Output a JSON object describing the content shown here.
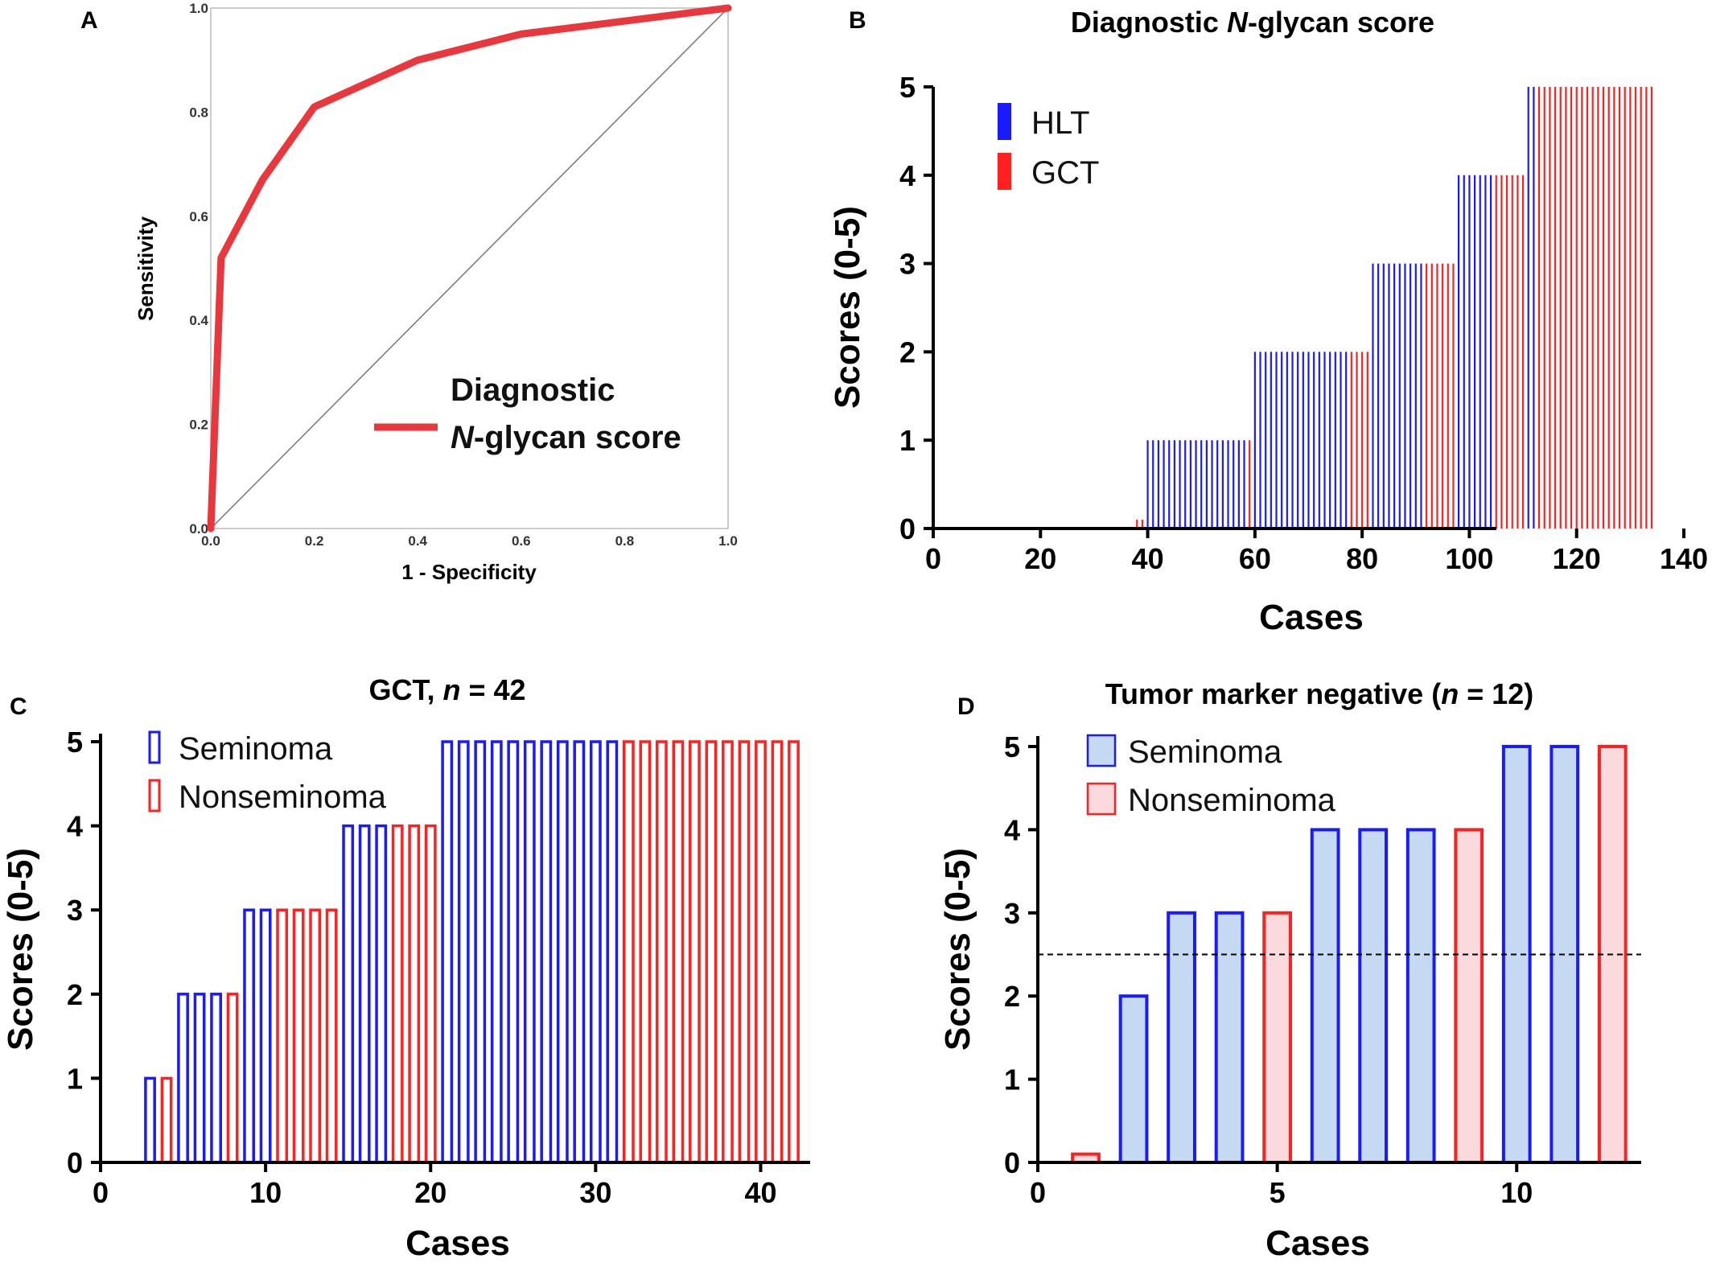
{
  "panels": {
    "a": {
      "label": "A"
    },
    "b": {
      "label": "B"
    },
    "c": {
      "label": "C"
    },
    "d": {
      "label": "D"
    }
  },
  "chart_data": [
    {
      "panel": "A",
      "type": "line",
      "title": "",
      "xlabel": "1 - Specificity",
      "ylabel": "Sensitivity",
      "xlim": [
        0,
        1
      ],
      "ylim": [
        0,
        1
      ],
      "xticks": [
        "0.0",
        "0.2",
        "0.4",
        "0.6",
        "0.8",
        "1.0"
      ],
      "yticks": [
        "0.0",
        "0.2",
        "0.4",
        "0.6",
        "0.8",
        "1.0"
      ],
      "series": [
        {
          "name": "Diagnostic N-glycan score",
          "color": "#e8383d",
          "points": [
            [
              0,
              0
            ],
            [
              0.02,
              0.52
            ],
            [
              0.1,
              0.67
            ],
            [
              0.2,
              0.81
            ],
            [
              0.4,
              0.9
            ],
            [
              0.6,
              0.95
            ],
            [
              1.0,
              1.0
            ]
          ]
        }
      ],
      "reference_line": [
        [
          0,
          0
        ],
        [
          1,
          1
        ]
      ],
      "legend_lines": [
        "Diagnostic",
        "N",
        "-glycan score"
      ]
    },
    {
      "panel": "B",
      "type": "bar",
      "title_parts": [
        "Diagnostic ",
        "N",
        "-glycan score"
      ],
      "xlabel": "Cases",
      "ylabel": "Scores (0-5)",
      "xlim": [
        0,
        140
      ],
      "ylim": [
        0,
        5
      ],
      "xticks": [
        "0",
        "20",
        "40",
        "60",
        "80",
        "100",
        "120",
        "140"
      ],
      "yticks": [
        "0",
        "1",
        "2",
        "3",
        "4",
        "5"
      ],
      "legend": [
        {
          "name": "HLT",
          "color": "#1a1aff"
        },
        {
          "name": "GCT",
          "color": "#ff2020"
        }
      ],
      "runs": [
        {
          "group": "GCT",
          "score": 0.1,
          "count": 2
        },
        {
          "group": "HLT",
          "score": 1,
          "count": 19
        },
        {
          "group": "GCT",
          "score": 1,
          "count": 1
        },
        {
          "group": "HLT",
          "score": 2,
          "count": 18
        },
        {
          "group": "GCT",
          "score": 2,
          "count": 4
        },
        {
          "group": "HLT",
          "score": 3,
          "count": 10
        },
        {
          "group": "GCT",
          "score": 3,
          "count": 6
        },
        {
          "group": "HLT",
          "score": 4,
          "count": 7
        },
        {
          "group": "GCT",
          "score": 4,
          "count": 6
        },
        {
          "group": "HLT",
          "score": 5,
          "count": 2
        },
        {
          "group": "GCT",
          "score": 5,
          "count": 22
        }
      ],
      "first_case": 38
    },
    {
      "panel": "C",
      "type": "bar",
      "title_parts": [
        "GCT, ",
        "n",
        " = 42"
      ],
      "xlabel": "Cases",
      "ylabel": "Scores (0-5)",
      "xlim": [
        0,
        43
      ],
      "ylim": [
        0,
        5
      ],
      "xticks": [
        "0",
        "10",
        "20",
        "30",
        "40"
      ],
      "yticks": [
        "0",
        "1",
        "2",
        "3",
        "4",
        "5"
      ],
      "legend": [
        {
          "name": "Seminoma",
          "color": "#1a1aff"
        },
        {
          "name": "Nonseminoma",
          "color": "#ff2020"
        }
      ],
      "runs": [
        {
          "group": "Seminoma",
          "score": 1,
          "count": 1
        },
        {
          "group": "Nonseminoma",
          "score": 1,
          "count": 1
        },
        {
          "group": "Seminoma",
          "score": 2,
          "count": 3
        },
        {
          "group": "Nonseminoma",
          "score": 2,
          "count": 1
        },
        {
          "group": "Seminoma",
          "score": 3,
          "count": 2
        },
        {
          "group": "Nonseminoma",
          "score": 3,
          "count": 4
        },
        {
          "group": "Seminoma",
          "score": 4,
          "count": 3
        },
        {
          "group": "Nonseminoma",
          "score": 4,
          "count": 3
        },
        {
          "group": "Seminoma",
          "score": 5,
          "count": 11
        },
        {
          "group": "Nonseminoma",
          "score": 5,
          "count": 11
        }
      ],
      "first_case": 3
    },
    {
      "panel": "D",
      "type": "bar",
      "title_parts": [
        "Tumor marker negative (",
        "n",
        " = 12)"
      ],
      "xlabel": "Cases",
      "ylabel": "Scores (0-5)",
      "xlim": [
        0,
        12.6
      ],
      "ylim": [
        0,
        5
      ],
      "xticks": [
        "0",
        "5",
        "10"
      ],
      "yticks": [
        "0",
        "1",
        "2",
        "3",
        "4",
        "5"
      ],
      "threshold": 2.5,
      "legend": [
        {
          "name": "Seminoma",
          "color": "#1a1aff",
          "fill": "#c5daf2"
        },
        {
          "name": "Nonseminoma",
          "color": "#ff2020",
          "fill": "#fadadd"
        }
      ],
      "bars": [
        {
          "case": 1,
          "group": "Nonseminoma",
          "score": 0.1
        },
        {
          "case": 2,
          "group": "Seminoma",
          "score": 2
        },
        {
          "case": 3,
          "group": "Seminoma",
          "score": 3
        },
        {
          "case": 4,
          "group": "Seminoma",
          "score": 3
        },
        {
          "case": 5,
          "group": "Nonseminoma",
          "score": 3
        },
        {
          "case": 6,
          "group": "Seminoma",
          "score": 4
        },
        {
          "case": 7,
          "group": "Seminoma",
          "score": 4
        },
        {
          "case": 8,
          "group": "Seminoma",
          "score": 4
        },
        {
          "case": 9,
          "group": "Nonseminoma",
          "score": 4
        },
        {
          "case": 10,
          "group": "Seminoma",
          "score": 5
        },
        {
          "case": 11,
          "group": "Seminoma",
          "score": 5
        },
        {
          "case": 12,
          "group": "Nonseminoma",
          "score": 5
        }
      ]
    }
  ]
}
